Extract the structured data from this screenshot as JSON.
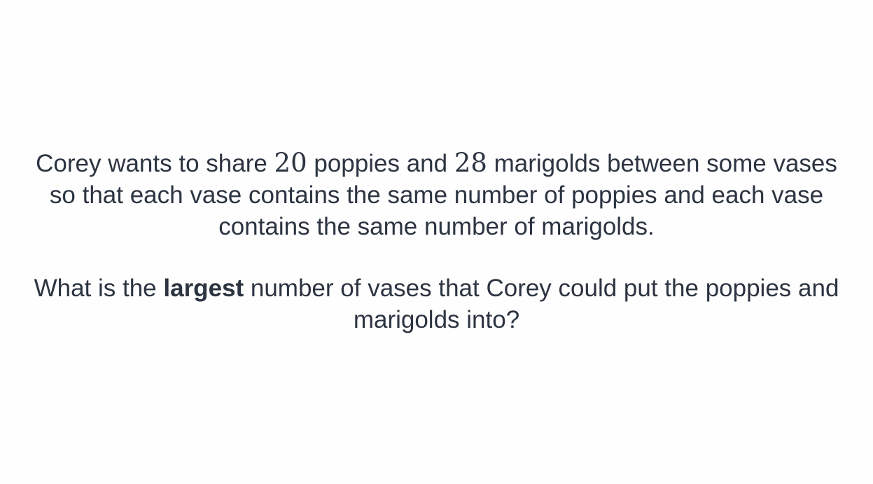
{
  "question": {
    "paragraph1": {
      "part1": "Corey wants to share ",
      "num1": "20",
      "part2": " poppies and ",
      "num2": "28",
      "part3": " marigolds between some vases so that each vase contains the same number of poppies and each vase contains the same number of marigolds."
    },
    "paragraph2": {
      "part1": "What is the ",
      "emphasis": "largest",
      "part2": " number of vases that Corey could put the poppies and marigolds into?"
    }
  }
}
